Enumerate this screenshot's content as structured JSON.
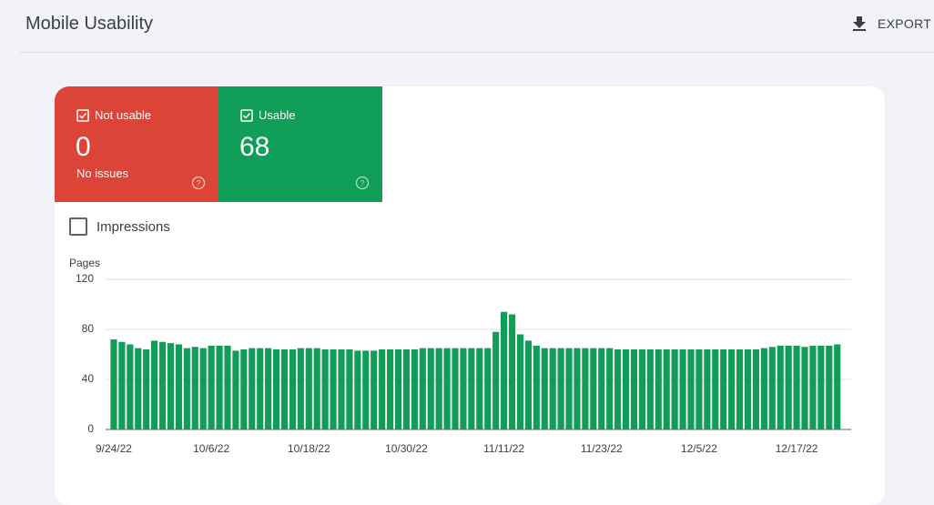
{
  "header": {
    "title": "Mobile Usability",
    "export": "EXPORT"
  },
  "cards": [
    {
      "label": "Not usable",
      "value": 0,
      "note": "No issues"
    },
    {
      "label": "Usable",
      "value": 68
    }
  ],
  "impressions": "Impressions",
  "chart_data": {
    "type": "bar",
    "y_label": "Pages",
    "color": "#0f9d58",
    "categories": [
      "9/24/22",
      null,
      null,
      null,
      null,
      null,
      null,
      null,
      null,
      null,
      null,
      null,
      "10/6/22",
      null,
      null,
      null,
      null,
      null,
      null,
      null,
      null,
      null,
      null,
      null,
      "10/18/22",
      null,
      null,
      null,
      null,
      null,
      null,
      null,
      null,
      null,
      null,
      null,
      "10/30/22",
      null,
      null,
      null,
      null,
      null,
      null,
      null,
      null,
      null,
      null,
      null,
      "11/11/22",
      null,
      null,
      null,
      null,
      null,
      null,
      null,
      null,
      null,
      null,
      null,
      "11/23/22",
      null,
      null,
      null,
      null,
      null,
      null,
      null,
      null,
      null,
      null,
      null,
      "12/5/22",
      null,
      null,
      null,
      null,
      null,
      null,
      null,
      null,
      null,
      null,
      null,
      "12/17/22",
      null,
      null,
      null,
      null,
      null
    ],
    "values": [
      72,
      70,
      68,
      65,
      64,
      71,
      70,
      69,
      68,
      65,
      66,
      65,
      67,
      67,
      67,
      63,
      64,
      65,
      65,
      65,
      64,
      64,
      64,
      65,
      65,
      65,
      64,
      64,
      64,
      64,
      63,
      63,
      63,
      64,
      64,
      64,
      64,
      64,
      65,
      65,
      65,
      65,
      65,
      65,
      65,
      65,
      65,
      78,
      94,
      92,
      76,
      71,
      67,
      65,
      65,
      65,
      65,
      65,
      65,
      65,
      65,
      65,
      64,
      64,
      64,
      64,
      64,
      64,
      64,
      64,
      64,
      64,
      64,
      64,
      64,
      64,
      64,
      64,
      64,
      64,
      65,
      66,
      67,
      67,
      67,
      66,
      67,
      67,
      67,
      68
    ],
    "ylim": [
      0,
      120
    ],
    "yticks": [
      0,
      40,
      80,
      120
    ],
    "grid": true
  }
}
